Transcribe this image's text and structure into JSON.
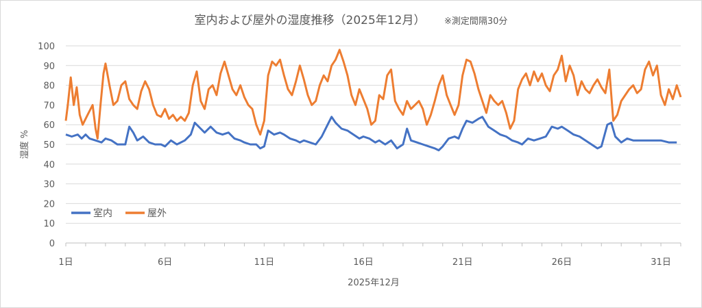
{
  "chart_data": {
    "type": "line",
    "title": "室内および屋外の湿度推移（2025年12月）",
    "subtitle": "※測定間隔30分",
    "xlabel": "2025年12月",
    "ylabel": "湿度 %",
    "ylim": [
      0,
      100
    ],
    "yticks": [
      "0",
      "10",
      "20",
      "30",
      "40",
      "50",
      "60",
      "70",
      "80",
      "90",
      "100"
    ],
    "xticks": [
      {
        "day": 1,
        "label": "1日"
      },
      {
        "day": 6,
        "label": "6日"
      },
      {
        "day": 11,
        "label": "11日"
      },
      {
        "day": 16,
        "label": "16日"
      },
      {
        "day": 21,
        "label": "21日"
      },
      {
        "day": 26,
        "label": "26日"
      },
      {
        "day": 31,
        "label": "31日"
      }
    ],
    "xlim_days": [
      1,
      32
    ],
    "grid": "horizontal",
    "legend": "bottom-left",
    "series": [
      {
        "name": "室内",
        "color": "#4472c4",
        "points": [
          [
            1.0,
            55
          ],
          [
            1.3,
            54
          ],
          [
            1.6,
            55
          ],
          [
            1.8,
            53
          ],
          [
            2.0,
            55
          ],
          [
            2.2,
            53
          ],
          [
            2.5,
            52
          ],
          [
            2.8,
            51
          ],
          [
            3.0,
            53
          ],
          [
            3.3,
            52
          ],
          [
            3.6,
            50
          ],
          [
            4.0,
            50
          ],
          [
            4.2,
            59
          ],
          [
            4.4,
            56
          ],
          [
            4.6,
            52
          ],
          [
            4.9,
            54
          ],
          [
            5.2,
            51
          ],
          [
            5.5,
            50
          ],
          [
            5.8,
            50
          ],
          [
            6.0,
            49
          ],
          [
            6.3,
            52
          ],
          [
            6.6,
            50
          ],
          [
            7.0,
            52
          ],
          [
            7.3,
            55
          ],
          [
            7.5,
            61
          ],
          [
            7.8,
            58
          ],
          [
            8.0,
            56
          ],
          [
            8.3,
            59
          ],
          [
            8.6,
            56
          ],
          [
            8.9,
            55
          ],
          [
            9.2,
            56
          ],
          [
            9.5,
            53
          ],
          [
            9.8,
            52
          ],
          [
            10.0,
            51
          ],
          [
            10.3,
            50
          ],
          [
            10.6,
            50
          ],
          [
            10.8,
            48
          ],
          [
            11.0,
            49
          ],
          [
            11.2,
            57
          ],
          [
            11.5,
            55
          ],
          [
            11.8,
            56
          ],
          [
            12.0,
            55
          ],
          [
            12.3,
            53
          ],
          [
            12.6,
            52
          ],
          [
            12.8,
            51
          ],
          [
            13.0,
            52
          ],
          [
            13.3,
            51
          ],
          [
            13.6,
            50
          ],
          [
            13.9,
            54
          ],
          [
            14.2,
            60
          ],
          [
            14.4,
            64
          ],
          [
            14.6,
            61
          ],
          [
            14.9,
            58
          ],
          [
            15.2,
            57
          ],
          [
            15.5,
            55
          ],
          [
            15.8,
            53
          ],
          [
            16.0,
            54
          ],
          [
            16.3,
            53
          ],
          [
            16.6,
            51
          ],
          [
            16.8,
            52
          ],
          [
            17.1,
            50
          ],
          [
            17.4,
            52
          ],
          [
            17.7,
            48
          ],
          [
            18.0,
            50
          ],
          [
            18.2,
            58
          ],
          [
            18.4,
            52
          ],
          [
            18.7,
            51
          ],
          [
            19.0,
            50
          ],
          [
            19.3,
            49
          ],
          [
            19.6,
            48
          ],
          [
            19.8,
            47
          ],
          [
            20.0,
            49
          ],
          [
            20.3,
            53
          ],
          [
            20.6,
            54
          ],
          [
            20.8,
            53
          ],
          [
            21.0,
            58
          ],
          [
            21.2,
            62
          ],
          [
            21.5,
            61
          ],
          [
            21.8,
            63
          ],
          [
            22.0,
            64
          ],
          [
            22.3,
            59
          ],
          [
            22.6,
            57
          ],
          [
            22.9,
            55
          ],
          [
            23.2,
            54
          ],
          [
            23.5,
            52
          ],
          [
            23.8,
            51
          ],
          [
            24.0,
            50
          ],
          [
            24.3,
            53
          ],
          [
            24.6,
            52
          ],
          [
            24.9,
            53
          ],
          [
            25.2,
            54
          ],
          [
            25.5,
            59
          ],
          [
            25.8,
            58
          ],
          [
            26.0,
            59
          ],
          [
            26.3,
            57
          ],
          [
            26.6,
            55
          ],
          [
            26.9,
            54
          ],
          [
            27.2,
            52
          ],
          [
            27.5,
            50
          ],
          [
            27.8,
            48
          ],
          [
            28.0,
            49
          ],
          [
            28.3,
            60
          ],
          [
            28.5,
            61
          ],
          [
            28.7,
            54
          ],
          [
            29.0,
            51
          ],
          [
            29.3,
            53
          ],
          [
            29.6,
            52
          ],
          [
            30.0,
            52
          ],
          [
            30.5,
            52
          ],
          [
            31.0,
            52
          ],
          [
            31.4,
            51
          ],
          [
            31.8,
            51
          ]
        ]
      },
      {
        "name": "屋外",
        "color": "#ed7d31",
        "points": [
          [
            1.0,
            62
          ],
          [
            1.1,
            70
          ],
          [
            1.25,
            84
          ],
          [
            1.4,
            70
          ],
          [
            1.55,
            79
          ],
          [
            1.7,
            65
          ],
          [
            1.85,
            60
          ],
          [
            2.0,
            63
          ],
          [
            2.2,
            67
          ],
          [
            2.35,
            70
          ],
          [
            2.5,
            58
          ],
          [
            2.6,
            53
          ],
          [
            2.75,
            70
          ],
          [
            2.9,
            86
          ],
          [
            3.0,
            91
          ],
          [
            3.2,
            80
          ],
          [
            3.4,
            70
          ],
          [
            3.6,
            72
          ],
          [
            3.8,
            80
          ],
          [
            4.0,
            82
          ],
          [
            4.2,
            73
          ],
          [
            4.4,
            70
          ],
          [
            4.6,
            68
          ],
          [
            4.8,
            77
          ],
          [
            5.0,
            82
          ],
          [
            5.2,
            78
          ],
          [
            5.4,
            70
          ],
          [
            5.6,
            65
          ],
          [
            5.8,
            64
          ],
          [
            6.0,
            68
          ],
          [
            6.2,
            63
          ],
          [
            6.4,
            65
          ],
          [
            6.6,
            62
          ],
          [
            6.8,
            64
          ],
          [
            7.0,
            62
          ],
          [
            7.2,
            66
          ],
          [
            7.4,
            80
          ],
          [
            7.6,
            87
          ],
          [
            7.8,
            72
          ],
          [
            8.0,
            68
          ],
          [
            8.2,
            78
          ],
          [
            8.4,
            80
          ],
          [
            8.6,
            75
          ],
          [
            8.8,
            86
          ],
          [
            9.0,
            92
          ],
          [
            9.2,
            85
          ],
          [
            9.4,
            78
          ],
          [
            9.6,
            75
          ],
          [
            9.8,
            80
          ],
          [
            10.0,
            74
          ],
          [
            10.2,
            70
          ],
          [
            10.4,
            68
          ],
          [
            10.6,
            60
          ],
          [
            10.8,
            55
          ],
          [
            11.0,
            62
          ],
          [
            11.2,
            85
          ],
          [
            11.4,
            92
          ],
          [
            11.6,
            90
          ],
          [
            11.8,
            93
          ],
          [
            12.0,
            85
          ],
          [
            12.2,
            78
          ],
          [
            12.4,
            75
          ],
          [
            12.6,
            82
          ],
          [
            12.8,
            90
          ],
          [
            13.0,
            83
          ],
          [
            13.2,
            75
          ],
          [
            13.4,
            70
          ],
          [
            13.6,
            72
          ],
          [
            13.8,
            80
          ],
          [
            14.0,
            85
          ],
          [
            14.2,
            82
          ],
          [
            14.4,
            90
          ],
          [
            14.6,
            93
          ],
          [
            14.8,
            98
          ],
          [
            15.0,
            92
          ],
          [
            15.2,
            85
          ],
          [
            15.4,
            75
          ],
          [
            15.6,
            70
          ],
          [
            15.8,
            78
          ],
          [
            16.0,
            73
          ],
          [
            16.2,
            68
          ],
          [
            16.4,
            60
          ],
          [
            16.6,
            62
          ],
          [
            16.8,
            75
          ],
          [
            17.0,
            73
          ],
          [
            17.2,
            85
          ],
          [
            17.4,
            88
          ],
          [
            17.6,
            72
          ],
          [
            17.8,
            68
          ],
          [
            18.0,
            65
          ],
          [
            18.2,
            72
          ],
          [
            18.4,
            68
          ],
          [
            18.6,
            70
          ],
          [
            18.8,
            72
          ],
          [
            19.0,
            68
          ],
          [
            19.2,
            60
          ],
          [
            19.4,
            65
          ],
          [
            19.6,
            72
          ],
          [
            19.8,
            80
          ],
          [
            20.0,
            85
          ],
          [
            20.2,
            75
          ],
          [
            20.4,
            70
          ],
          [
            20.6,
            65
          ],
          [
            20.8,
            70
          ],
          [
            21.0,
            85
          ],
          [
            21.2,
            93
          ],
          [
            21.4,
            92
          ],
          [
            21.6,
            86
          ],
          [
            21.8,
            78
          ],
          [
            22.0,
            72
          ],
          [
            22.2,
            66
          ],
          [
            22.4,
            75
          ],
          [
            22.6,
            72
          ],
          [
            22.8,
            70
          ],
          [
            23.0,
            72
          ],
          [
            23.2,
            66
          ],
          [
            23.4,
            58
          ],
          [
            23.6,
            62
          ],
          [
            23.8,
            78
          ],
          [
            24.0,
            83
          ],
          [
            24.2,
            86
          ],
          [
            24.4,
            80
          ],
          [
            24.6,
            87
          ],
          [
            24.8,
            82
          ],
          [
            25.0,
            86
          ],
          [
            25.2,
            80
          ],
          [
            25.4,
            77
          ],
          [
            25.6,
            85
          ],
          [
            25.8,
            88
          ],
          [
            26.0,
            95
          ],
          [
            26.2,
            82
          ],
          [
            26.4,
            90
          ],
          [
            26.6,
            85
          ],
          [
            26.8,
            75
          ],
          [
            27.0,
            82
          ],
          [
            27.2,
            78
          ],
          [
            27.4,
            76
          ],
          [
            27.6,
            80
          ],
          [
            27.8,
            83
          ],
          [
            28.0,
            79
          ],
          [
            28.2,
            76
          ],
          [
            28.4,
            88
          ],
          [
            28.6,
            62
          ],
          [
            28.8,
            65
          ],
          [
            29.0,
            72
          ],
          [
            29.2,
            75
          ],
          [
            29.4,
            78
          ],
          [
            29.6,
            80
          ],
          [
            29.8,
            76
          ],
          [
            30.0,
            78
          ],
          [
            30.2,
            88
          ],
          [
            30.4,
            92
          ],
          [
            30.6,
            85
          ],
          [
            30.8,
            90
          ],
          [
            31.0,
            75
          ],
          [
            31.2,
            70
          ],
          [
            31.4,
            78
          ],
          [
            31.6,
            73
          ],
          [
            31.8,
            80
          ],
          [
            32.0,
            74
          ]
        ]
      }
    ]
  }
}
